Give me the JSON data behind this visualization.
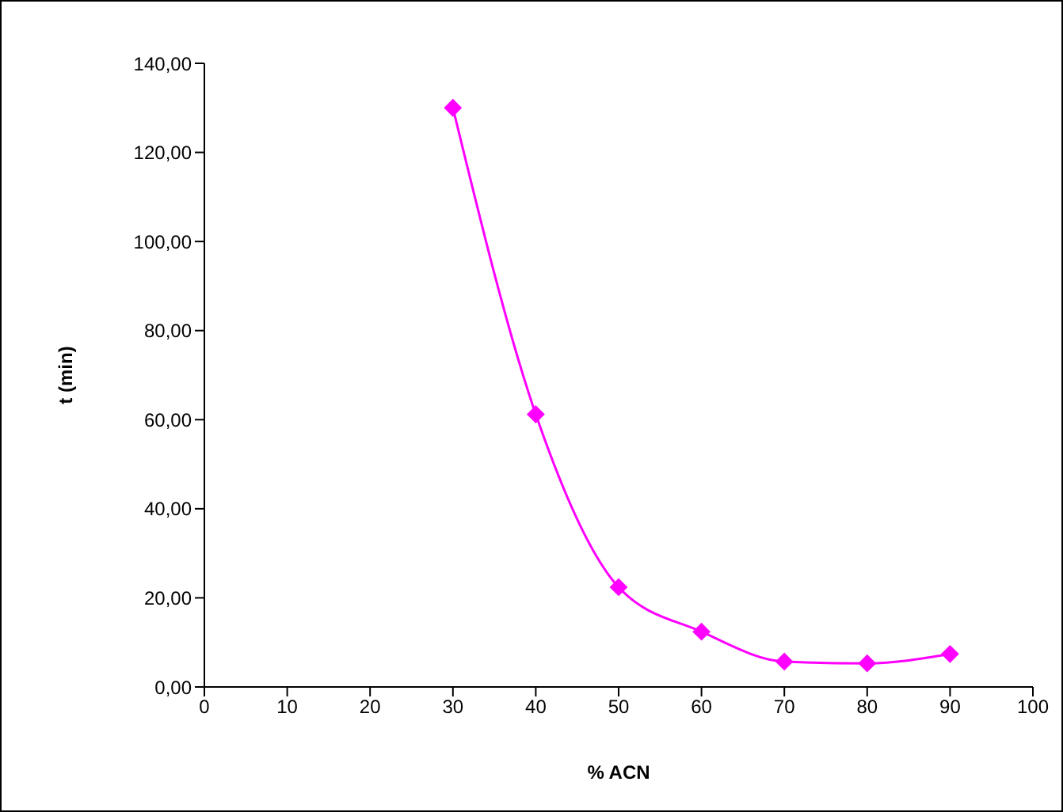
{
  "chart_data": {
    "type": "line",
    "xlabel": "% ACN",
    "ylabel": "t (min)",
    "x": [
      30,
      40,
      50,
      60,
      70,
      80,
      90
    ],
    "series": [
      {
        "color": "#ff00ff",
        "values": [
          130,
          61.2,
          22.4,
          12.4,
          5.7,
          5.3,
          7.4
        ]
      }
    ],
    "xlim": [
      0,
      100
    ],
    "xticks": [
      0,
      10,
      20,
      30,
      40,
      50,
      60,
      70,
      80,
      90,
      100
    ],
    "ylim": [
      0,
      140
    ],
    "yticks": [
      {
        "value": 0,
        "label": "0,00"
      },
      {
        "value": 20,
        "label": "20,00"
      },
      {
        "value": 40,
        "label": "40,00"
      },
      {
        "value": 60,
        "label": "60,00"
      },
      {
        "value": 80,
        "label": "80,00"
      },
      {
        "value": 100,
        "label": "100,00"
      },
      {
        "value": 120,
        "label": "120,00"
      },
      {
        "value": 140,
        "label": "140,00"
      }
    ],
    "grid": false,
    "legend": false,
    "marker": "diamond",
    "line_style": "solid"
  }
}
